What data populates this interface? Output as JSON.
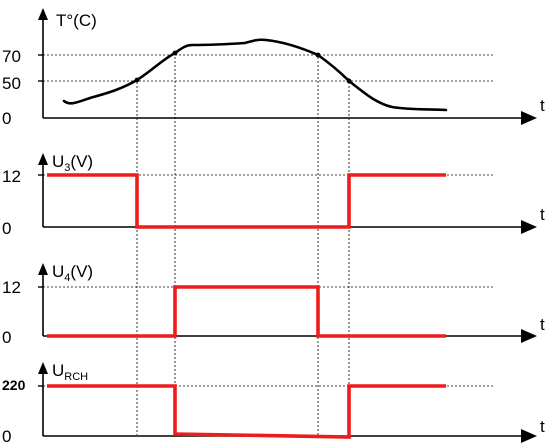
{
  "colors": {
    "signal": "#ee1c1c",
    "axis": "#000000"
  },
  "plots": {
    "temperature": {
      "ylabel": "T°(C)",
      "xlabel": "t",
      "ticks": [
        {
          "label": "70",
          "value": 70
        },
        {
          "label": "50",
          "value": 50
        },
        {
          "label": "0",
          "value": 0
        }
      ]
    },
    "u3": {
      "ylabel_main": "U",
      "ylabel_sub": "3",
      "ylabel_unit": "(V)",
      "xlabel": "t",
      "ticks": [
        {
          "label": "12",
          "value": 12
        },
        {
          "label": "0",
          "value": 0
        }
      ]
    },
    "u4": {
      "ylabel_main": "U",
      "ylabel_sub": "4",
      "ylabel_unit": "(V)",
      "xlabel": "t",
      "ticks": [
        {
          "label": "12",
          "value": 12
        },
        {
          "label": "0",
          "value": 0
        }
      ]
    },
    "urch": {
      "ylabel_main": "U",
      "ylabel_sub": "RCH",
      "xlabel": "t",
      "ticks": [
        {
          "label": "220",
          "value": 220
        },
        {
          "label": "0",
          "value": 0
        }
      ]
    }
  }
}
